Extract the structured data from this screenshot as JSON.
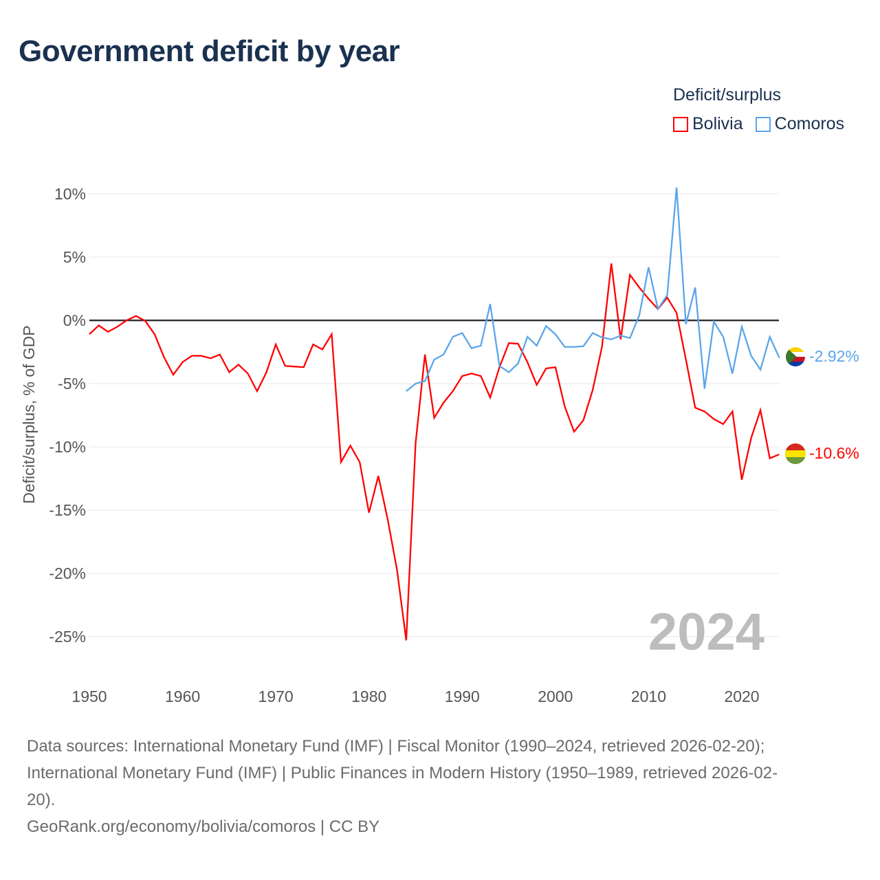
{
  "title": "Government deficit by year",
  "legend": {
    "title": "Deficit/surplus",
    "items": [
      {
        "name": "Bolivia",
        "color": "#ff0000"
      },
      {
        "name": "Comoros",
        "color": "#5aa5ea"
      }
    ]
  },
  "year_watermark": "2024",
  "end_labels": {
    "Bolivia": "-10.6%",
    "Comoros": "-2.92%"
  },
  "source_lines": [
    "Data sources: International Monetary Fund (IMF) | Fiscal Monitor (1990–2024, retrieved 2026-02-20);",
    "International Monetary Fund (IMF) | Public Finances in Modern History (1950–1989, retrieved 2026-02-",
    "20).",
    "GeoRank.org/economy/bolivia/comoros | CC BY"
  ],
  "chart_data": {
    "type": "line",
    "title": "Government deficit by year",
    "xlabel": "",
    "ylabel": "Deficit/surplus, % of GDP",
    "xlim": [
      1950,
      2024
    ],
    "ylim": [
      -27,
      12
    ],
    "xticks": [
      1950,
      1960,
      1970,
      1980,
      1990,
      2000,
      2010,
      2020
    ],
    "yticks": [
      10,
      5,
      0,
      -5,
      -10,
      -15,
      -20,
      -25
    ],
    "ytick_labels": [
      "10%",
      "5%",
      "0%",
      "-5%",
      "-10%",
      "-15%",
      "-20%",
      "-25%"
    ],
    "grid": true,
    "legend_position": "top-right",
    "series": [
      {
        "name": "Bolivia",
        "color": "#ff0000",
        "x_start": 1950,
        "values": [
          -1.1,
          -0.4,
          -0.9,
          -0.5,
          0.0,
          0.35,
          -0.05,
          -1.1,
          -2.9,
          -4.3,
          -3.3,
          -2.8,
          -2.8,
          -3.0,
          -2.7,
          -4.1,
          -3.5,
          -4.2,
          -5.6,
          -4.1,
          -1.9,
          -3.6,
          -3.65,
          -3.7,
          -1.9,
          -2.3,
          -1.1,
          -11.2,
          -9.9,
          -11.2,
          -15.2,
          -12.3,
          -15.7,
          -19.7,
          -25.3,
          -9.7,
          -2.7,
          -7.7,
          -6.5,
          -5.6,
          -4.4,
          -4.2,
          -4.4,
          -6.1,
          -3.7,
          -1.8,
          -1.85,
          -3.3,
          -5.1,
          -3.8,
          -3.7,
          -6.8,
          -8.8,
          -7.9,
          -5.5,
          -2.1,
          4.5,
          -1.5,
          3.6,
          2.6,
          1.7,
          0.9,
          1.8,
          0.6,
          -3.1,
          -6.9,
          -7.2,
          -7.8,
          -8.2,
          -7.2,
          -12.6,
          -9.3,
          -7.1,
          -10.9,
          -10.6
        ]
      },
      {
        "name": "Comoros",
        "color": "#5aa5ea",
        "x_start": 1984,
        "values": [
          -5.6,
          -5.0,
          -4.8,
          -3.1,
          -2.7,
          -1.3,
          -1.0,
          -2.2,
          -2.0,
          1.3,
          -3.6,
          -4.1,
          -3.4,
          -1.3,
          -2.0,
          -0.45,
          -1.1,
          -2.1,
          -2.1,
          -2.05,
          -1.0,
          -1.35,
          -1.5,
          -1.2,
          -1.4,
          0.4,
          4.2,
          0.9,
          2.0,
          10.5,
          -0.3,
          2.6,
          -5.4,
          -0.1,
          -1.3,
          -4.2,
          -0.5,
          -2.8,
          -3.9,
          -1.3,
          -2.92
        ]
      }
    ]
  }
}
